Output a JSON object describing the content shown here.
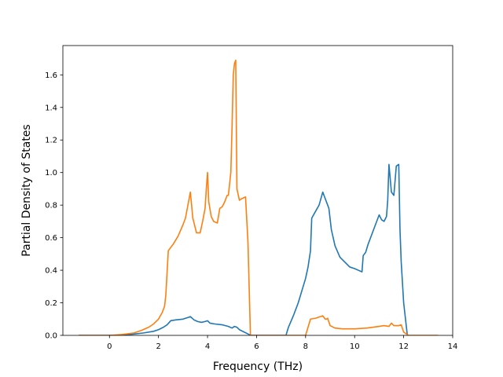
{
  "chart_data": {
    "type": "line",
    "title": "",
    "xlabel": "Frequency (THz)",
    "ylabel": "Partial Density of States",
    "xlim": [
      -1.9,
      14.0
    ],
    "ylim": [
      0.0,
      1.78
    ],
    "xticks": [
      0,
      2,
      4,
      6,
      8,
      10,
      12,
      14
    ],
    "yticks": [
      0.0,
      0.2,
      0.4,
      0.6,
      0.8,
      1.0,
      1.2,
      1.4,
      1.6
    ],
    "xtick_labels": [
      "0",
      "2",
      "4",
      "6",
      "8",
      "10",
      "12",
      "14"
    ],
    "ytick_labels": [
      "0.0",
      "0.2",
      "0.4",
      "0.6",
      "0.8",
      "1.0",
      "1.2",
      "1.4",
      "1.6"
    ],
    "grid": false,
    "legend": "none",
    "series": [
      {
        "color": "#1f77b4",
        "x": [
          -1.25,
          0.0,
          0.6,
          1.0,
          1.4,
          1.8,
          2.0,
          2.2,
          2.35,
          2.5,
          2.7,
          3.0,
          3.2,
          3.3,
          3.45,
          3.6,
          3.75,
          3.9,
          4.0,
          4.1,
          4.3,
          4.6,
          4.85,
          5.0,
          5.1,
          5.2,
          5.3,
          5.5,
          5.7,
          5.8,
          6.0,
          6.5,
          7.0,
          7.2,
          7.3,
          7.5,
          7.7,
          7.9,
          8.0,
          8.1,
          8.2,
          8.25,
          8.4,
          8.55,
          8.7,
          8.8,
          8.95,
          9.05,
          9.2,
          9.4,
          9.6,
          9.8,
          10.0,
          10.15,
          10.3,
          10.35,
          10.45,
          10.55,
          10.7,
          10.85,
          11.0,
          11.1,
          11.2,
          11.3,
          11.35,
          11.4,
          11.5,
          11.6,
          11.7,
          11.8,
          11.85,
          11.9,
          12.0,
          12.15,
          12.2
        ],
        "y": [
          0.0,
          0.0,
          0.003,
          0.008,
          0.015,
          0.025,
          0.035,
          0.05,
          0.065,
          0.09,
          0.095,
          0.1,
          0.11,
          0.115,
          0.095,
          0.085,
          0.08,
          0.085,
          0.09,
          0.075,
          0.07,
          0.065,
          0.055,
          0.045,
          0.055,
          0.05,
          0.035,
          0.02,
          0.005,
          0.0,
          0.0,
          0.0,
          0.0,
          0.0,
          0.05,
          0.12,
          0.2,
          0.3,
          0.35,
          0.42,
          0.52,
          0.72,
          0.76,
          0.8,
          0.88,
          0.84,
          0.78,
          0.65,
          0.55,
          0.48,
          0.45,
          0.42,
          0.41,
          0.4,
          0.39,
          0.49,
          0.51,
          0.56,
          0.62,
          0.68,
          0.74,
          0.71,
          0.7,
          0.73,
          0.83,
          1.05,
          0.88,
          0.86,
          1.04,
          1.05,
          0.65,
          0.45,
          0.2,
          0.0,
          0.0
        ]
      },
      {
        "color": "#ff7f0e",
        "x": [
          -1.25,
          0.0,
          0.5,
          1.0,
          1.3,
          1.6,
          1.8,
          2.0,
          2.15,
          2.25,
          2.3,
          2.4,
          2.6,
          2.8,
          3.0,
          3.1,
          3.2,
          3.3,
          3.4,
          3.55,
          3.7,
          3.8,
          3.9,
          3.95,
          4.0,
          4.05,
          4.15,
          4.25,
          4.4,
          4.5,
          4.6,
          4.7,
          4.8,
          4.85,
          4.95,
          5.0,
          5.05,
          5.1,
          5.15,
          5.2,
          5.3,
          5.4,
          5.55,
          5.65,
          5.75,
          6.0,
          7.0,
          7.5,
          8.0,
          8.2,
          8.4,
          8.6,
          8.7,
          8.8,
          8.85,
          8.9,
          9.0,
          9.2,
          9.5,
          10.0,
          10.5,
          11.0,
          11.2,
          11.4,
          11.5,
          11.6,
          11.8,
          11.9,
          12.0,
          12.2,
          12.5,
          13.0,
          13.4
        ],
        "y": [
          0.0,
          0.0,
          0.005,
          0.015,
          0.03,
          0.05,
          0.07,
          0.1,
          0.14,
          0.18,
          0.25,
          0.52,
          0.56,
          0.61,
          0.68,
          0.72,
          0.8,
          0.88,
          0.72,
          0.63,
          0.63,
          0.7,
          0.78,
          0.9,
          1.0,
          0.82,
          0.73,
          0.7,
          0.69,
          0.78,
          0.79,
          0.82,
          0.86,
          0.86,
          1.0,
          1.28,
          1.6,
          1.67,
          1.69,
          0.9,
          0.83,
          0.84,
          0.85,
          0.57,
          0.0,
          0.0,
          0.0,
          0.0,
          0.0,
          0.1,
          0.105,
          0.115,
          0.12,
          0.1,
          0.1,
          0.105,
          0.06,
          0.045,
          0.04,
          0.04,
          0.045,
          0.055,
          0.06,
          0.055,
          0.075,
          0.06,
          0.06,
          0.065,
          0.02,
          0.0,
          0.0,
          0.0,
          0.0
        ]
      }
    ]
  }
}
